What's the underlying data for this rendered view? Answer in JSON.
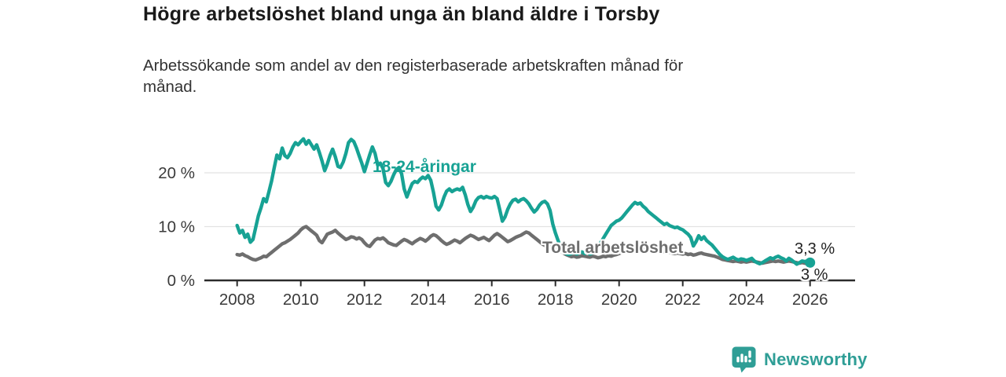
{
  "header": {
    "title": "Högre arbetslöshet bland unga än bland äldre i Torsby",
    "subtitle_lines": [
      "Arbetssökande som andel av den registerbaserade arbetskraften månad för",
      "månad."
    ]
  },
  "branding": {
    "logo_text": "Newsworthy",
    "logo_color": "#2f9e96"
  },
  "chart_data": {
    "type": "line",
    "title": "Högre arbetslöshet bland unga än bland äldre i Torsby",
    "subtitle": "Arbetssökande som andel av den registerbaserade arbetskraften månad för månad.",
    "grid": "horizontal-only",
    "x_axis": {
      "tick_labels": [
        "2008",
        "2010",
        "2012",
        "2014",
        "2016",
        "2018",
        "2020",
        "2022",
        "2024",
        "2026"
      ],
      "tick_years": [
        2008,
        2010,
        2012,
        2014,
        2016,
        2018,
        2020,
        2022,
        2024,
        2026
      ],
      "range_years": [
        2007.0,
        2027.4
      ]
    },
    "y_axis": {
      "unit": "%",
      "range": [
        0,
        27.3
      ],
      "ticks": [
        {
          "value": 0,
          "label": "0 %"
        },
        {
          "value": 10,
          "label": "10 %"
        },
        {
          "value": 20,
          "label": "20 %"
        }
      ]
    },
    "colors": {
      "axis": "#2b2b2b",
      "gridline": "#e2e2e2",
      "tick_text": "#3a3a3a"
    },
    "series": [
      {
        "name": "Total arbetslöshet",
        "color": "#6e6e6e",
        "start": "2008-01",
        "interval": "monthly",
        "end_label": "3 %",
        "values": [
          4.8,
          4.7,
          4.9,
          4.6,
          4.4,
          4.1,
          3.9,
          3.8,
          4.0,
          4.2,
          4.5,
          4.4,
          4.8,
          5.2,
          5.6,
          6.0,
          6.4,
          6.8,
          7.0,
          7.3,
          7.6,
          8.0,
          8.4,
          8.8,
          9.4,
          9.8,
          10.0,
          9.6,
          9.2,
          8.8,
          8.4,
          7.4,
          7.0,
          7.8,
          8.6,
          8.8,
          9.0,
          9.3,
          8.8,
          8.4,
          8.0,
          7.6,
          7.8,
          8.1,
          8.0,
          7.7,
          7.9,
          7.6,
          7.0,
          6.5,
          6.3,
          6.9,
          7.5,
          7.8,
          7.7,
          7.9,
          7.5,
          7.0,
          6.8,
          6.6,
          6.5,
          6.9,
          7.3,
          7.6,
          7.4,
          7.1,
          6.8,
          7.2,
          7.5,
          7.8,
          7.6,
          7.3,
          7.7,
          8.2,
          8.5,
          8.3,
          7.9,
          7.4,
          7.0,
          6.7,
          6.9,
          7.2,
          7.5,
          7.3,
          7.0,
          7.4,
          7.8,
          8.1,
          8.4,
          8.2,
          7.9,
          7.6,
          7.8,
          8.0,
          7.7,
          7.4,
          7.9,
          8.4,
          8.7,
          8.4,
          8.0,
          7.6,
          7.2,
          7.4,
          7.7,
          8.0,
          8.2,
          8.4,
          8.7,
          9.0,
          8.8,
          8.4,
          8.0,
          7.6,
          7.2,
          6.8,
          6.5,
          6.7,
          6.4,
          6.2,
          6.0,
          5.7,
          5.4,
          5.1,
          4.8,
          4.6,
          4.4,
          4.5,
          4.3,
          4.4,
          4.6,
          4.5,
          4.4,
          4.3,
          4.5,
          4.4,
          4.2,
          4.3,
          4.5,
          4.4,
          4.6,
          4.5,
          4.7,
          4.8,
          5.0,
          5.2,
          5.6,
          6.0,
          6.3,
          6.5,
          6.6,
          6.4,
          6.2,
          6.1,
          6.0,
          5.9,
          5.8,
          5.9,
          5.7,
          5.6,
          5.4,
          5.3,
          5.4,
          5.2,
          5.1,
          5.0,
          5.1,
          5.0,
          4.9,
          5.0,
          4.8,
          4.9,
          4.7,
          4.8,
          5.0,
          5.1,
          4.9,
          4.8,
          4.7,
          4.6,
          4.5,
          4.3,
          4.1,
          3.9,
          3.8,
          3.7,
          3.6,
          3.5,
          3.6,
          3.5,
          3.4,
          3.5,
          3.4,
          3.5,
          3.6,
          3.5,
          3.4,
          3.3,
          3.2,
          3.3,
          3.4,
          3.5,
          3.6,
          3.5,
          3.6,
          3.5,
          3.4,
          3.5,
          3.6,
          3.5,
          3.4,
          3.3,
          3.2,
          3.3,
          3.2,
          3.1,
          3.0
        ]
      },
      {
        "name": "18-24-åringar",
        "color": "#17a294",
        "start": "2008-01",
        "interval": "monthly",
        "end_label": "3,3 %",
        "values": [
          10.2,
          8.8,
          9.3,
          8.0,
          8.6,
          7.1,
          7.6,
          9.8,
          12.0,
          13.5,
          15.2,
          14.6,
          16.5,
          18.5,
          21.0,
          23.3,
          22.6,
          24.6,
          23.2,
          22.8,
          23.6,
          24.8,
          25.6,
          25.2,
          25.8,
          26.3,
          25.3,
          26.0,
          25.2,
          24.4,
          25.2,
          23.8,
          22.2,
          20.4,
          21.6,
          23.2,
          24.4,
          23.0,
          21.2,
          21.0,
          22.0,
          23.6,
          25.6,
          26.2,
          25.8,
          24.6,
          23.2,
          21.8,
          20.2,
          21.8,
          23.4,
          24.8,
          23.6,
          21.4,
          21.8,
          20.8,
          18.2,
          17.6,
          18.4,
          19.6,
          20.6,
          21.0,
          19.8,
          17.0,
          15.5,
          16.8,
          18.0,
          18.4,
          18.2,
          18.8,
          19.2,
          18.9,
          19.5,
          18.6,
          16.4,
          13.8,
          13.1,
          14.0,
          15.5,
          16.6,
          17.0,
          16.5,
          16.8,
          17.0,
          16.8,
          17.3,
          15.9,
          14.1,
          12.8,
          13.6,
          14.8,
          15.4,
          15.6,
          15.3,
          15.6,
          15.4,
          15.3,
          15.6,
          15.2,
          13.2,
          11.0,
          11.8,
          13.2,
          14.2,
          14.9,
          15.1,
          14.6,
          15.0,
          15.2,
          14.8,
          14.2,
          13.4,
          12.7,
          13.2,
          14.0,
          14.5,
          14.7,
          14.2,
          13.0,
          10.5,
          8.8,
          7.4,
          6.2,
          5.4,
          5.0,
          4.8,
          5.0,
          5.2,
          4.9,
          5.1,
          5.3,
          5.0,
          5.2,
          4.9,
          5.1,
          5.4,
          6.2,
          7.0,
          7.8,
          8.6,
          9.4,
          10.2,
          10.6,
          11.0,
          11.2,
          11.6,
          12.2,
          12.8,
          13.4,
          14.0,
          14.5,
          14.2,
          14.4,
          13.8,
          13.4,
          12.8,
          12.4,
          12.0,
          11.6,
          11.2,
          10.8,
          10.4,
          10.6,
          10.2,
          10.0,
          9.8,
          9.9,
          9.6,
          9.4,
          9.0,
          8.6,
          8.0,
          6.4,
          7.2,
          8.3,
          7.6,
          8.1,
          7.4,
          7.0,
          6.6,
          6.0,
          5.4,
          4.8,
          4.4,
          4.1,
          3.9,
          4.1,
          4.3,
          4.0,
          3.8,
          4.0,
          3.9,
          3.7,
          3.9,
          4.1,
          3.6,
          3.3,
          3.1,
          3.3,
          3.6,
          3.9,
          4.2,
          4.0,
          4.3,
          4.5,
          4.2,
          4.0,
          3.6,
          4.1,
          3.8,
          3.4,
          3.0,
          3.3,
          3.6,
          3.5,
          3.6,
          3.3
        ]
      }
    ]
  }
}
